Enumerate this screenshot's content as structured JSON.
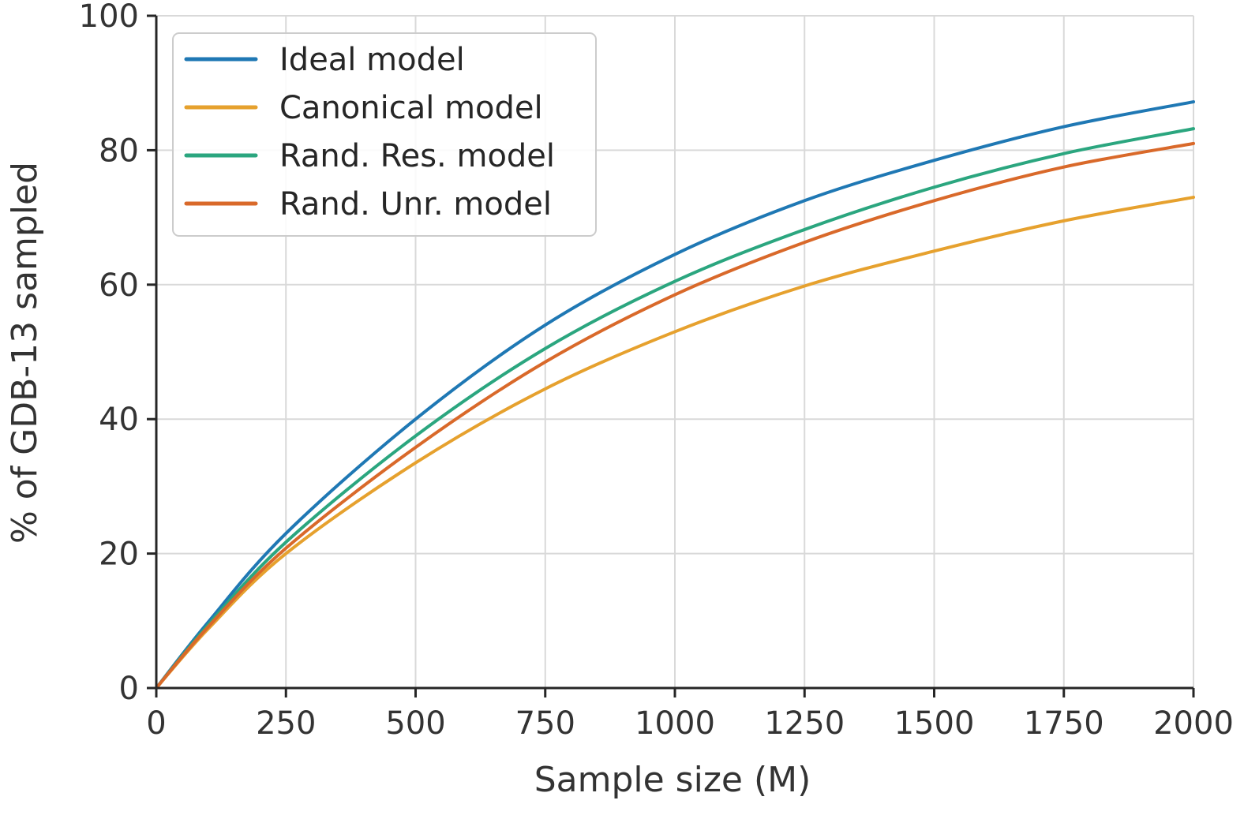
{
  "chart_data": {
    "type": "line",
    "title": "",
    "xlabel": "Sample size (M)",
    "ylabel": "% of GDB-13 sampled",
    "xlim": [
      0,
      2000
    ],
    "ylim": [
      0,
      100
    ],
    "xticks": [
      0,
      250,
      500,
      750,
      1000,
      1250,
      1500,
      1750,
      2000
    ],
    "yticks": [
      0,
      20,
      40,
      60,
      80,
      100
    ],
    "grid": true,
    "legend_position": "top-left",
    "x": [
      0,
      100,
      250,
      500,
      750,
      1000,
      1250,
      1500,
      1750,
      2000
    ],
    "series": [
      {
        "name": "Ideal model",
        "color": "#1f78b4",
        "values": [
          0,
          9.8,
          23.0,
          40.0,
          54.0,
          64.5,
          72.5,
          78.5,
          83.5,
          87.2
        ]
      },
      {
        "name": "Canonical model",
        "color": "#e6a12e",
        "values": [
          0,
          8.8,
          20.0,
          33.5,
          44.5,
          53.0,
          59.8,
          65.0,
          69.5,
          73.0
        ]
      },
      {
        "name": "Rand. Res. model",
        "color": "#2ba67f",
        "values": [
          0,
          9.4,
          21.7,
          37.5,
          50.5,
          60.5,
          68.2,
          74.5,
          79.5,
          83.2
        ]
      },
      {
        "name": "Rand. Unr. model",
        "color": "#d9692a",
        "values": [
          0,
          9.1,
          20.8,
          35.8,
          48.5,
          58.5,
          66.3,
          72.5,
          77.5,
          81.0
        ]
      }
    ]
  }
}
